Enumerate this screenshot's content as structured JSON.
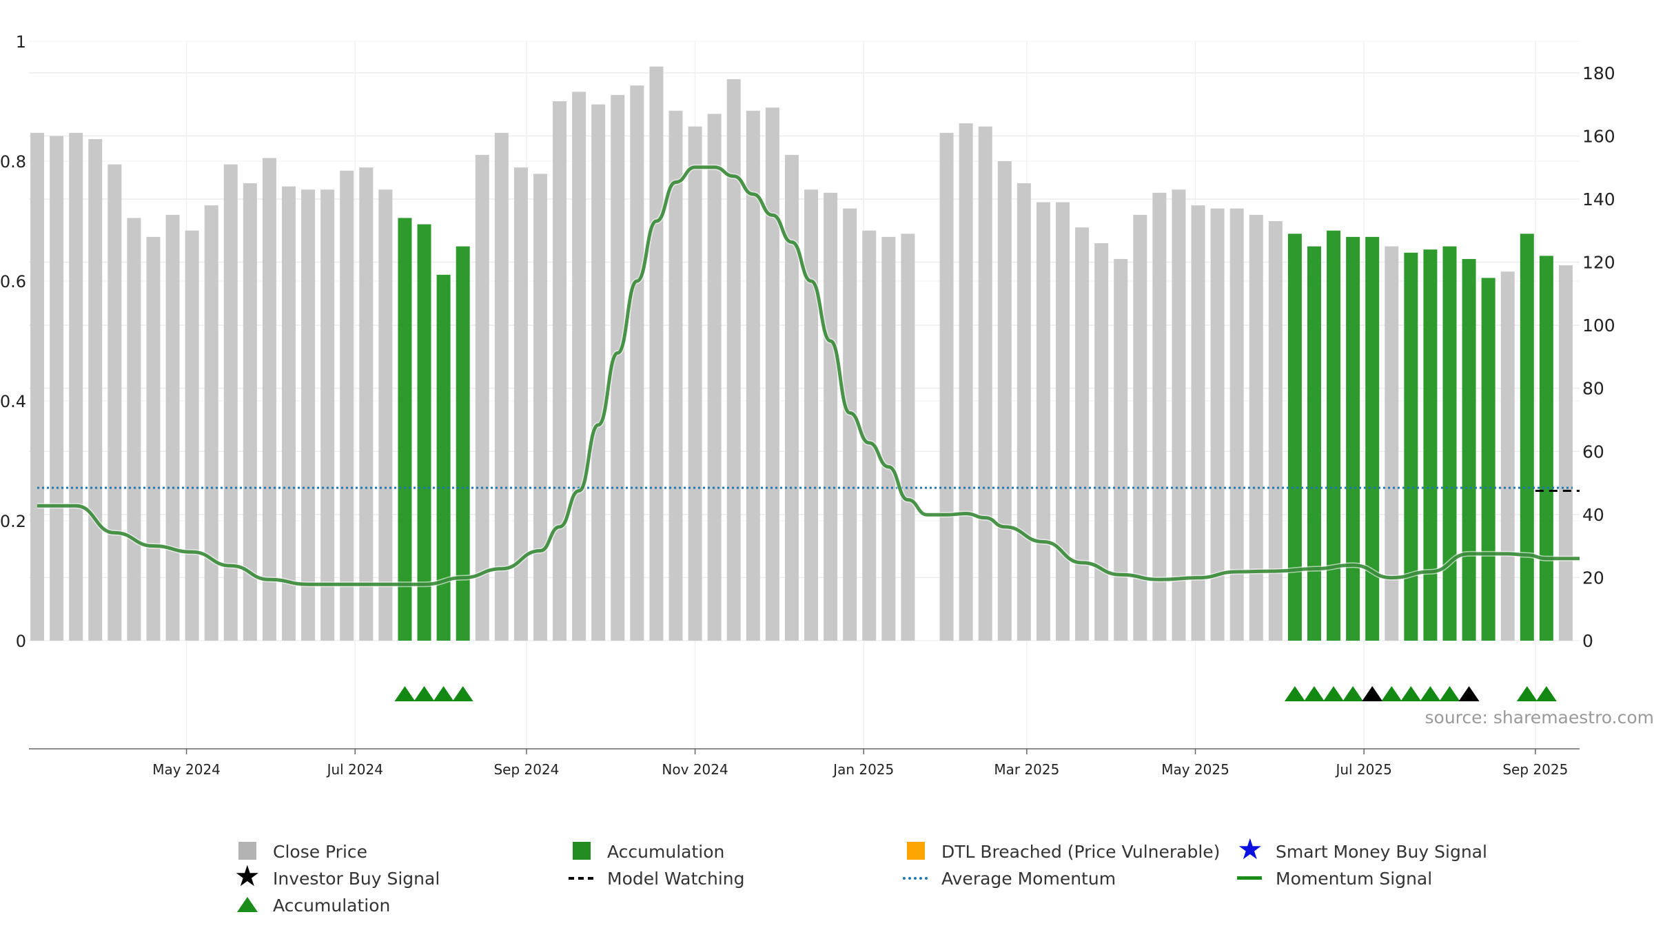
{
  "chart_data": {
    "type": "bar",
    "left_axis": {
      "ticks": [
        0,
        0.2,
        0.4,
        0.6,
        0.8,
        1
      ],
      "labels": [
        "0",
        "0.2",
        "0.4",
        "0.6",
        "0.8",
        "1"
      ],
      "range": [
        0,
        1
      ]
    },
    "right_axis": {
      "ticks": [
        0,
        20,
        40,
        60,
        80,
        100,
        120,
        140,
        160,
        180
      ],
      "range": [
        0,
        190
      ]
    },
    "x_ticks": [
      {
        "label": "May 2024",
        "date": "2024-05-01"
      },
      {
        "label": "Jul 2024",
        "date": "2024-07-01"
      },
      {
        "label": "Sep 2024",
        "date": "2024-09-01"
      },
      {
        "label": "Nov 2024",
        "date": "2024-11-01"
      },
      {
        "label": "Jan 2025",
        "date": "2025-01-01"
      },
      {
        "label": "Mar 2025",
        "date": "2025-03-01"
      },
      {
        "label": "May 2025",
        "date": "2025-05-01"
      },
      {
        "label": "Jul 2025",
        "date": "2025-07-01"
      },
      {
        "label": "Sep 2025",
        "date": "2025-09-01"
      }
    ],
    "x_range": [
      "2024-03-05",
      "2025-09-17"
    ],
    "grid": true,
    "colors": {
      "close": "#c8c8c8",
      "accumulation": "#2e9a2e",
      "momentum": "#1e7a1e",
      "average": "#1f77b4",
      "triangle_green": "#138913",
      "triangle_black": "#000000"
    },
    "series": [
      {
        "name": "Close Price",
        "axis": "right",
        "dates": [
          "2024-03-08",
          "2024-03-15",
          "2024-03-22",
          "2024-03-29",
          "2024-04-05",
          "2024-04-12",
          "2024-04-19",
          "2024-04-26",
          "2024-05-03",
          "2024-05-10",
          "2024-05-17",
          "2024-05-24",
          "2024-05-31",
          "2024-06-07",
          "2024-06-14",
          "2024-06-21",
          "2024-06-28",
          "2024-07-05",
          "2024-07-12",
          "2024-07-19",
          "2024-07-26",
          "2024-08-02",
          "2024-08-09",
          "2024-08-16",
          "2024-08-23",
          "2024-08-30",
          "2024-09-06",
          "2024-09-13",
          "2024-09-20",
          "2024-09-27",
          "2024-10-04",
          "2024-10-11",
          "2024-10-18",
          "2024-10-25",
          "2024-11-01",
          "2024-11-08",
          "2024-11-15",
          "2024-11-22",
          "2024-11-29",
          "2024-12-06",
          "2024-12-13",
          "2024-12-20",
          "2024-12-27",
          "2025-01-03",
          "2025-01-10",
          "2025-01-17",
          "2025-01-24",
          "2025-01-31",
          "2025-02-07",
          "2025-02-14",
          "2025-02-21",
          "2025-02-28",
          "2025-03-07",
          "2025-03-14",
          "2025-03-21",
          "2025-03-28",
          "2025-04-04",
          "2025-04-11",
          "2025-04-18",
          "2025-04-25",
          "2025-05-02",
          "2025-05-09",
          "2025-05-16",
          "2025-05-23",
          "2025-05-30",
          "2025-06-06",
          "2025-06-13",
          "2025-06-20",
          "2025-06-27",
          "2025-07-04",
          "2025-07-11",
          "2025-07-18",
          "2025-07-25",
          "2025-08-01",
          "2025-08-08",
          "2025-08-15",
          "2025-08-22",
          "2025-08-29",
          "2025-09-05",
          "2025-09-12"
        ],
        "values": [
          161,
          160,
          161,
          159,
          151,
          134,
          128,
          135,
          130,
          138,
          151,
          145,
          153,
          144,
          143,
          143,
          149,
          150,
          143,
          134,
          132,
          116,
          125,
          154,
          161,
          150,
          148,
          171,
          174,
          170,
          173,
          176,
          182,
          168,
          163,
          167,
          178,
          168,
          169,
          154,
          143,
          142,
          137,
          130,
          128,
          129,
          null,
          161,
          164,
          163,
          152,
          145,
          139,
          139,
          131,
          126,
          121,
          135,
          142,
          143,
          138,
          137,
          137,
          135,
          133,
          129,
          125,
          130,
          128,
          128,
          125,
          123,
          124,
          125,
          121,
          115,
          117,
          129,
          122,
          119
        ],
        "accumulation": [
          false,
          false,
          false,
          false,
          false,
          false,
          false,
          false,
          false,
          false,
          false,
          false,
          false,
          false,
          false,
          false,
          false,
          false,
          false,
          true,
          true,
          true,
          true,
          false,
          false,
          false,
          false,
          false,
          false,
          false,
          false,
          false,
          false,
          false,
          false,
          false,
          false,
          false,
          false,
          false,
          false,
          false,
          false,
          false,
          false,
          false,
          false,
          false,
          false,
          false,
          false,
          false,
          false,
          false,
          false,
          false,
          false,
          false,
          false,
          false,
          false,
          false,
          false,
          false,
          false,
          true,
          true,
          true,
          true,
          true,
          false,
          true,
          true,
          true,
          true,
          true,
          false,
          true,
          true,
          false
        ]
      },
      {
        "name": "Momentum Signal",
        "axis": "left",
        "dates": [
          "2024-03-08",
          "2024-03-22",
          "2024-04-05",
          "2024-04-19",
          "2024-05-03",
          "2024-05-17",
          "2024-05-31",
          "2024-06-14",
          "2024-06-28",
          "2024-07-12",
          "2024-07-26",
          "2024-08-09",
          "2024-08-23",
          "2024-09-06",
          "2024-09-13",
          "2024-09-20",
          "2024-09-27",
          "2024-10-04",
          "2024-10-11",
          "2024-10-18",
          "2024-10-25",
          "2024-11-01",
          "2024-11-08",
          "2024-11-15",
          "2024-11-22",
          "2024-11-29",
          "2024-12-06",
          "2024-12-13",
          "2024-12-20",
          "2024-12-27",
          "2025-01-03",
          "2025-01-10",
          "2025-01-17",
          "2025-01-24",
          "2025-01-31",
          "2025-02-07",
          "2025-02-14",
          "2025-02-21",
          "2025-03-07",
          "2025-03-21",
          "2025-04-04",
          "2025-04-18",
          "2025-05-02",
          "2025-05-16",
          "2025-05-30",
          "2025-06-13",
          "2025-06-27",
          "2025-07-11",
          "2025-07-25",
          "2025-08-08",
          "2025-08-22",
          "2025-08-29",
          "2025-09-05",
          "2025-09-12",
          "2025-09-17"
        ],
        "values": [
          0.225,
          0.225,
          0.18,
          0.158,
          0.148,
          0.125,
          0.102,
          0.094,
          0.094,
          0.094,
          0.094,
          0.105,
          0.12,
          0.15,
          0.19,
          0.25,
          0.36,
          0.48,
          0.6,
          0.7,
          0.765,
          0.79,
          0.79,
          0.775,
          0.745,
          0.71,
          0.665,
          0.6,
          0.5,
          0.38,
          0.33,
          0.29,
          0.235,
          0.21,
          0.21,
          0.212,
          0.205,
          0.19,
          0.165,
          0.13,
          0.11,
          0.102,
          0.105,
          0.115,
          0.116,
          0.12,
          0.126,
          0.105,
          0.115,
          0.145,
          0.145,
          0.143,
          0.137,
          0.137,
          0.137
        ],
        "note_dates_are_weekly_approx": ""
      },
      {
        "name": "Average Momentum",
        "axis": "left",
        "value": 0.255
      },
      {
        "name": "Model Watching",
        "axis": "left",
        "dates": [
          "2025-09-01",
          "2025-09-17"
        ],
        "value": 0.25
      }
    ],
    "markers": {
      "green_triangle_dates": [
        "2024-07-19",
        "2024-07-26",
        "2024-08-02",
        "2024-08-09",
        "2025-06-06",
        "2025-06-13",
        "2025-06-20",
        "2025-06-27",
        "2025-07-11",
        "2025-07-18",
        "2025-07-25",
        "2025-08-01",
        "2025-08-29",
        "2025-09-05"
      ],
      "black_triangle_dates": [
        "2025-07-04",
        "2025-08-08"
      ]
    }
  },
  "legend": {
    "items": [
      {
        "label": "Close Price",
        "symbol": "gray-square"
      },
      {
        "label": "Accumulation",
        "symbol": "green-square"
      },
      {
        "label": "DTL Breached (Price Vulnerable)",
        "symbol": "orange-square"
      },
      {
        "label": "Smart Money Buy Signal",
        "symbol": "blue-star"
      },
      {
        "label": "Investor Buy Signal",
        "symbol": "black-star"
      },
      {
        "label": "Model Watching",
        "symbol": "black-dash"
      },
      {
        "label": "Average Momentum",
        "symbol": "blue-dotted"
      },
      {
        "label": "Momentum Signal",
        "symbol": "green-line"
      },
      {
        "label": "Accumulation",
        "symbol": "green-triangle"
      }
    ]
  },
  "source_text": "source: sharemaestro.com"
}
